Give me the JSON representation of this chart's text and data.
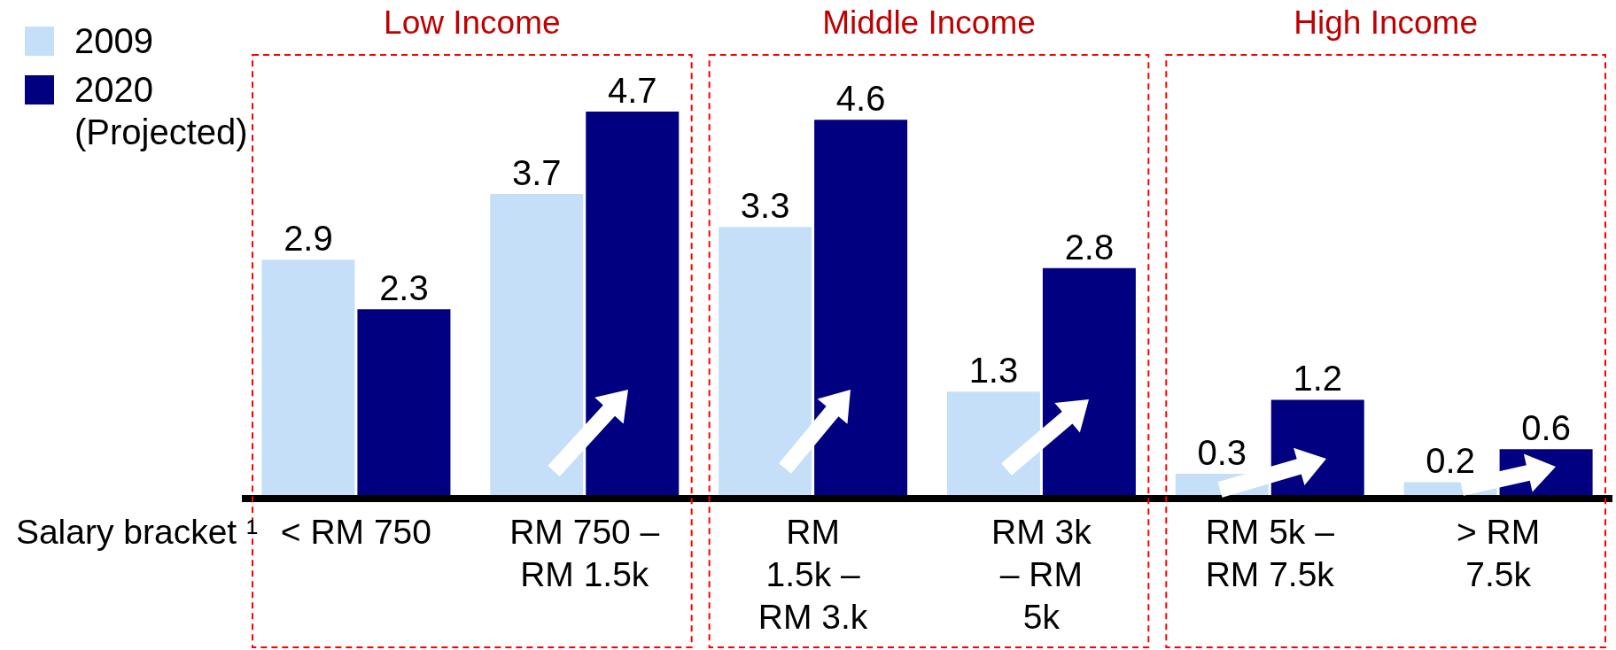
{
  "chart_data": {
    "type": "bar",
    "xlabel": "Salary bracket ¹",
    "categories": [
      "< RM 750",
      "RM 750 –\nRM 1.5k",
      "RM\n1.5k –\nRM 3.k",
      "RM 3k\n– RM\n5k",
      "RM 5k –\nRM 7.5k",
      "> RM\n7.5k"
    ],
    "series": [
      {
        "name": "2009",
        "color": "#c5dff8",
        "values": [
          2.9,
          3.7,
          3.3,
          1.3,
          0.3,
          0.2
        ]
      },
      {
        "name": "2020 (Projected)",
        "color": "#000080",
        "values": [
          2.3,
          4.7,
          4.6,
          2.8,
          1.2,
          0.6
        ]
      }
    ],
    "annotations": [
      "Low Income",
      "Middle Income",
      "High Income"
    ],
    "data_labels": true,
    "legend": "top left",
    "tick_labels": "x"
  }
}
